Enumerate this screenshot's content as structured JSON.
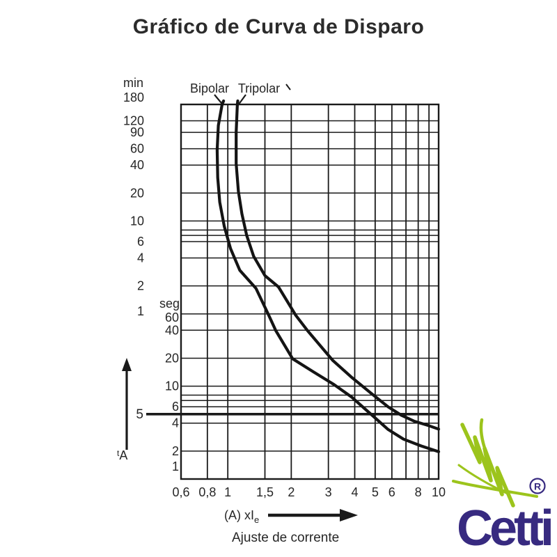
{
  "title": "Gráfico de Curva de Disparo",
  "logo": {
    "brand": "Cetti",
    "registered": "®",
    "green": "#9cc41c",
    "purple": "#372a80"
  },
  "chart_data": {
    "type": "line",
    "title": "Gráfico de Curva de Disparo",
    "grid": true,
    "colors": {
      "line": "#1a1a1a",
      "text": "#262626",
      "curve": "#141414"
    },
    "x_axis": {
      "scale": "log",
      "range": [
        0.6,
        10
      ],
      "label_main": "(A) xI",
      "label_sub": "e",
      "caption": "Ajuste de corrente",
      "gridlines": [
        0.6,
        0.8,
        1,
        1.5,
        2,
        3,
        4,
        5,
        6,
        7,
        8,
        9,
        10
      ],
      "ticks": [
        {
          "v": 0.6,
          "label": "0,6"
        },
        {
          "v": 0.8,
          "label": "0,8"
        },
        {
          "v": 1,
          "label": "1"
        },
        {
          "v": 1.5,
          "label": "1,5"
        },
        {
          "v": 2,
          "label": "2"
        },
        {
          "v": 3,
          "label": "3"
        },
        {
          "v": 4,
          "label": "4"
        },
        {
          "v": 5,
          "label": "5"
        },
        {
          "v": 6,
          "label": "6"
        },
        {
          "v": 8,
          "label": "8"
        },
        {
          "v": 10,
          "label": "10"
        }
      ]
    },
    "y_axis": {
      "scale": "log",
      "range_seconds": [
        1,
        10800
      ],
      "unit_top": "min",
      "unit_bottom": "seg",
      "time_label": {
        "sup": "t",
        "main": "A"
      },
      "gridlines_seconds": [
        10800,
        7200,
        5400,
        3600,
        2400,
        1200,
        600,
        480,
        420,
        360,
        240,
        120,
        60,
        40,
        20,
        10,
        8,
        7,
        6,
        4,
        2,
        1
      ],
      "ticks_min": [
        {
          "s": 10800,
          "label": "180",
          "dy": -10
        },
        {
          "s": 7200,
          "label": "120",
          "dy": 0
        },
        {
          "s": 5400,
          "label": "90",
          "dy": 0
        },
        {
          "s": 3600,
          "label": "60",
          "dy": 0
        },
        {
          "s": 2400,
          "label": "40",
          "dy": 0
        },
        {
          "s": 1200,
          "label": "20",
          "dy": 0
        },
        {
          "s": 600,
          "label": "10",
          "dy": 0
        },
        {
          "s": 360,
          "label": "6",
          "dy": 0
        },
        {
          "s": 240,
          "label": "4",
          "dy": 0
        },
        {
          "s": 120,
          "label": "2",
          "dy": 0
        },
        {
          "s": 60,
          "label": "1",
          "dy": -4
        }
      ],
      "ticks_seg": [
        {
          "s": 60,
          "label": "60",
          "dy": 5
        },
        {
          "s": 40,
          "label": "40",
          "dy": 0
        },
        {
          "s": 20,
          "label": "20",
          "dy": 0
        },
        {
          "s": 10,
          "label": "10",
          "dy": 0
        },
        {
          "s": 6,
          "label": "6",
          "dy": 0
        },
        {
          "s": 4,
          "label": "4",
          "dy": 0
        },
        {
          "s": 2,
          "label": "2",
          "dy": 0
        },
        {
          "s": 1,
          "label": "1",
          "dy": -18
        }
      ]
    },
    "marker": {
      "label": "5",
      "seconds": 5
    },
    "series": [
      {
        "name": "Bipolar",
        "points": [
          [
            0.955,
            11800
          ],
          [
            0.94,
            10800
          ],
          [
            0.902,
            6400
          ],
          [
            0.89,
            3500
          ],
          [
            0.896,
            1760
          ],
          [
            0.916,
            960
          ],
          [
            0.962,
            527
          ],
          [
            1.03,
            303
          ],
          [
            1.14,
            177
          ],
          [
            1.36,
            113
          ],
          [
            1.56,
            58.6
          ],
          [
            1.69,
            39.5
          ],
          [
            2.03,
            19.7
          ],
          [
            2.54,
            14.3
          ],
          [
            3.19,
            10.4
          ],
          [
            3.86,
            7.66
          ],
          [
            4.78,
            4.98
          ],
          [
            5.76,
            3.41
          ],
          [
            6.81,
            2.69
          ],
          [
            8.26,
            2.27
          ],
          [
            10,
            1.97
          ]
        ]
      },
      {
        "name": "Tripolar",
        "points": [
          [
            1.115,
            11800
          ],
          [
            1.11,
            10800
          ],
          [
            1.096,
            5400
          ],
          [
            1.096,
            2490
          ],
          [
            1.123,
            1250
          ],
          [
            1.166,
            720
          ],
          [
            1.229,
            420
          ],
          [
            1.326,
            250
          ],
          [
            1.5,
            155
          ],
          [
            1.74,
            117
          ],
          [
            2.1,
            57.9
          ],
          [
            2.39,
            39.5
          ],
          [
            3.14,
            19.0
          ],
          [
            3.86,
            12.5
          ],
          [
            4.78,
            8.4
          ],
          [
            5.76,
            5.98
          ],
          [
            6.65,
            4.87
          ],
          [
            7.68,
            4.18
          ],
          [
            8.97,
            3.76
          ],
          [
            10,
            3.45
          ]
        ]
      }
    ]
  }
}
